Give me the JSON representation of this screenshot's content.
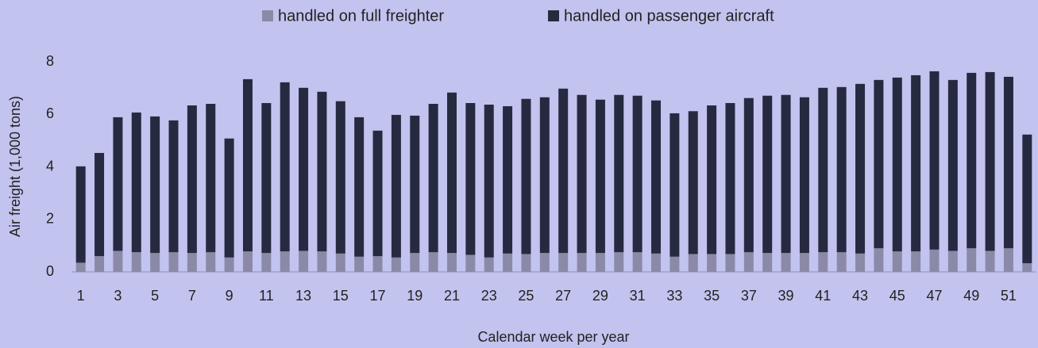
{
  "chart_data": {
    "type": "stacked-bar",
    "x_label": "Calendar week per year",
    "y_label": "Air freight (1,000 tons)",
    "categories": [
      1,
      null,
      3,
      null,
      5,
      null,
      7,
      null,
      9,
      null,
      11,
      null,
      13,
      null,
      15,
      null,
      17,
      null,
      19,
      null,
      21,
      null,
      23,
      null,
      25,
      null,
      27,
      null,
      29,
      null,
      31,
      null,
      33,
      null,
      35,
      null,
      37,
      null,
      39,
      null,
      41,
      null,
      43,
      null,
      45,
      null,
      47,
      null,
      49,
      null,
      51,
      null
    ],
    "series": [
      {
        "name": "handled on full freighter",
        "color": "#8a8aa8",
        "values": [
          0.35,
          0.6,
          0.8,
          0.75,
          0.72,
          0.75,
          0.72,
          0.75,
          0.55,
          0.78,
          0.72,
          0.78,
          0.8,
          0.78,
          0.7,
          0.58,
          0.6,
          0.55,
          0.72,
          0.75,
          0.72,
          0.65,
          0.55,
          0.7,
          0.68,
          0.72,
          0.72,
          0.72,
          0.72,
          0.75,
          0.75,
          0.7,
          0.58,
          0.68,
          0.68,
          0.68,
          0.75,
          0.72,
          0.72,
          0.72,
          0.75,
          0.75,
          0.7,
          0.9,
          0.78,
          0.78,
          0.85,
          0.8,
          0.9,
          0.8,
          0.9,
          0.33
        ]
      },
      {
        "name": "handled on passenger aircraft",
        "color": "#262a40",
        "values": [
          3.67,
          3.93,
          5.09,
          5.32,
          5.2,
          5.02,
          5.62,
          5.65,
          4.53,
          6.56,
          5.71,
          6.44,
          6.21,
          6.08,
          5.8,
          5.31,
          4.78,
          5.43,
          5.23,
          5.65,
          6.11,
          5.78,
          5.82,
          5.61,
          5.91,
          5.93,
          6.26,
          6.02,
          5.84,
          5.99,
          5.96,
          5.83,
          5.46,
          5.44,
          5.66,
          5.75,
          5.87,
          5.99,
          6.02,
          5.93,
          6.26,
          6.29,
          6.46,
          6.41,
          6.62,
          6.71,
          6.79,
          6.51,
          6.68,
          6.81,
          6.53,
          4.9
        ]
      }
    ],
    "ylim": [
      0,
      8
    ],
    "yticks": [
      0,
      2,
      4,
      6,
      8
    ],
    "grid": false,
    "legend": "top"
  }
}
